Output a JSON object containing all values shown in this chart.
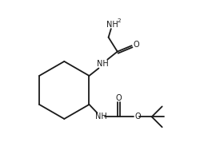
{
  "bg_color": "#ffffff",
  "line_color": "#1a1a1a",
  "line_width": 1.3,
  "font_size": 7.0,
  "fig_width": 2.5,
  "fig_height": 2.08,
  "dpi": 100,
  "xlim": [
    0,
    10
  ],
  "ylim": [
    0,
    8.32
  ]
}
